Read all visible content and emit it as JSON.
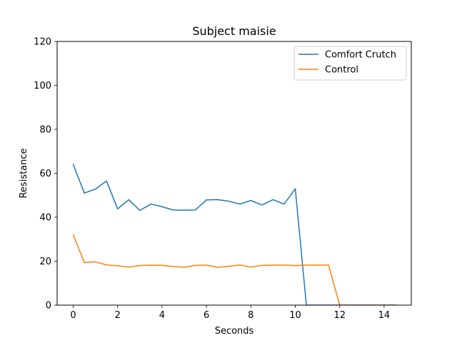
{
  "chart_data": {
    "type": "line",
    "title": "Subject maisie",
    "xlabel": "Seconds",
    "ylabel": "Resistance",
    "xlim": [
      -0.725,
      15.225
    ],
    "ylim": [
      0,
      120
    ],
    "xticks": [
      0,
      2,
      4,
      6,
      8,
      10,
      12,
      14
    ],
    "yticks": [
      0,
      20,
      40,
      60,
      80,
      100,
      120
    ],
    "grid": false,
    "legend_position": "top-right",
    "x": [
      0,
      0.5,
      1,
      1.5,
      2,
      2.5,
      3,
      3.5,
      4,
      4.5,
      5,
      5.5,
      6,
      6.5,
      7,
      7.5,
      8,
      8.5,
      9,
      9.5,
      10,
      10.5,
      11,
      11.5,
      12,
      12.5,
      13,
      13.5,
      14,
      14.5
    ],
    "series": [
      {
        "name": "Comfort Crutch",
        "color": "#1f77b4",
        "values": [
          64,
          51,
          52.8,
          56.5,
          43.8,
          48,
          43.1,
          46,
          44.8,
          43.3,
          43.2,
          43.3,
          47.9,
          48,
          47.3,
          46,
          47.6,
          45.6,
          48,
          46,
          53,
          0,
          0,
          0,
          0,
          0,
          0,
          0,
          0,
          0
        ]
      },
      {
        "name": "Control",
        "color": "#ff7f0e",
        "values": [
          32,
          19.4,
          19.7,
          18.3,
          17.9,
          17.3,
          18,
          18.2,
          18.1,
          17.6,
          17.2,
          18.1,
          18.2,
          17.2,
          17.7,
          18.3,
          17.3,
          18.1,
          18.2,
          18.2,
          18,
          18.2,
          18.2,
          18.2,
          0,
          0,
          0,
          0,
          0,
          0
        ]
      }
    ]
  }
}
